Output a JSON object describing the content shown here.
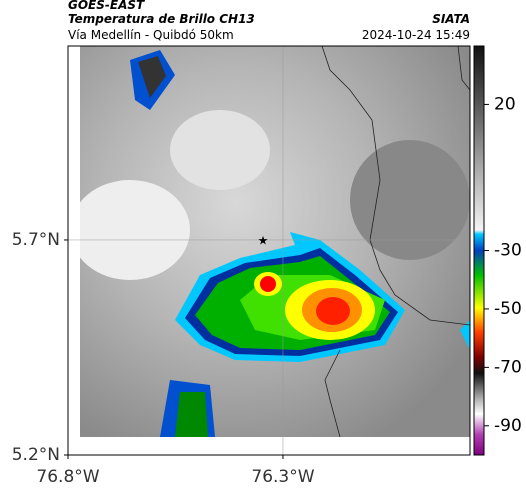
{
  "header": {
    "satellite": "GOES-EAST",
    "product": "Temperatura de Brillo CH13",
    "region": "Vía Medellín - Quibdó 50km",
    "source": "SIATA",
    "timestamp": "2024-10-24 15:49"
  },
  "map": {
    "xlim": [
      -76.8,
      -75.865
    ],
    "ylim": [
      5.2,
      6.151
    ],
    "xticks": [
      {
        "value": -76.8,
        "label": "76.8°W"
      },
      {
        "value": -76.3,
        "label": "76.3°W"
      }
    ],
    "yticks": [
      {
        "value": 5.7,
        "label": "5.7°N"
      },
      {
        "value": 5.2,
        "label": "5.2°N"
      }
    ],
    "grid": true
  },
  "colorbar": {
    "lim": [
      -100,
      40
    ],
    "ticks": [
      20,
      -30,
      -50,
      -70,
      -90
    ]
  }
}
